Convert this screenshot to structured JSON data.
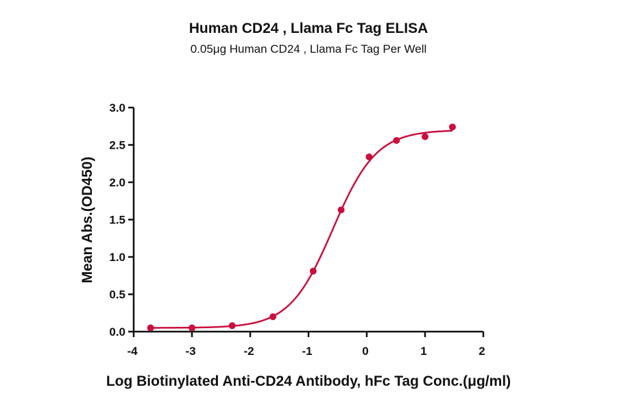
{
  "chart_data": {
    "type": "scatter",
    "title": "Human CD24 , Llama Fc Tag ELISA",
    "subtitle": "0.05μg Human CD24 , Llama Fc Tag Per Well",
    "xlabel": "Log Biotinylated Anti-CD24 Antibody, hFc Tag Conc.(μg/ml)",
    "ylabel": "Mean Abs.(OD450)",
    "xlim": [
      -4,
      2
    ],
    "ylim": [
      0,
      3.0
    ],
    "xticks": [
      "-4",
      "-3",
      "-2",
      "-1",
      "0",
      "1",
      "2"
    ],
    "yticks": [
      "0.0",
      "0.5",
      "1.0",
      "1.5",
      "2.0",
      "2.5",
      "3.0"
    ],
    "grid": false,
    "color": "#c8103e",
    "points": [
      {
        "x": -3.71,
        "y": 0.05
      },
      {
        "x": -3.0,
        "y": 0.05
      },
      {
        "x": -2.31,
        "y": 0.08
      },
      {
        "x": -1.61,
        "y": 0.2
      },
      {
        "x": -0.92,
        "y": 0.81
      },
      {
        "x": -0.44,
        "y": 1.63
      },
      {
        "x": 0.04,
        "y": 2.34
      },
      {
        "x": 0.51,
        "y": 2.56
      },
      {
        "x": 1.0,
        "y": 2.61
      },
      {
        "x": 1.47,
        "y": 2.74
      }
    ],
    "fit": {
      "model": "4PL",
      "bottom": 0.05,
      "top": 2.7,
      "logEC50": -0.58,
      "hill": 1.17
    }
  }
}
